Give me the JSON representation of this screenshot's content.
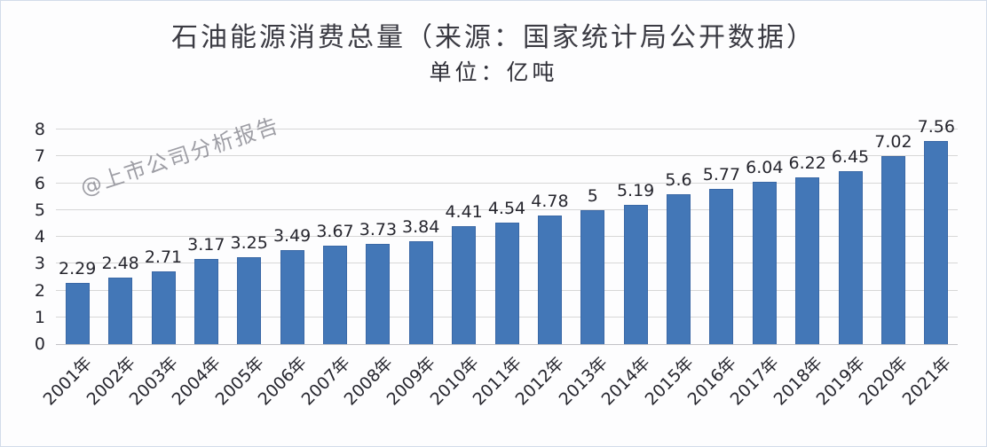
{
  "watermark": "@上市公司分析报告",
  "colors": {
    "bar": "#4377b7",
    "bar_border": "#3a68a6",
    "grid": "#d7d7d7",
    "baseline": "#c2c2c6",
    "axis_text": "#26262e",
    "title_text": "#3b3b43",
    "watermark_text": "#8e8e96",
    "background": "#fdfdfe"
  },
  "chart_data": {
    "type": "bar",
    "title": "石油能源消费总量（来源：国家统计局公开数据）",
    "subtitle": "单位：亿吨",
    "categories": [
      "2001年",
      "2002年",
      "2003年",
      "2004年",
      "2005年",
      "2006年",
      "2007年",
      "2008年",
      "2009年",
      "2010年",
      "2011年",
      "2012年",
      "2013年",
      "2014年",
      "2015年",
      "2016年",
      "2017年",
      "2018年",
      "2019年",
      "2020年",
      "2021年"
    ],
    "values": [
      2.29,
      2.48,
      2.71,
      3.17,
      3.25,
      3.49,
      3.67,
      3.73,
      3.84,
      4.41,
      4.54,
      4.78,
      5,
      5.19,
      5.6,
      5.77,
      6.04,
      6.22,
      6.45,
      7.02,
      7.56
    ],
    "xlabel": "",
    "ylabel": "",
    "ylim": [
      0,
      8
    ],
    "yticks": [
      "0",
      "1",
      "2",
      "3",
      "4",
      "5",
      "6",
      "7",
      "8"
    ],
    "grid": true,
    "legend": false,
    "data_labels": true,
    "x_tick_rotation_deg": -45
  }
}
